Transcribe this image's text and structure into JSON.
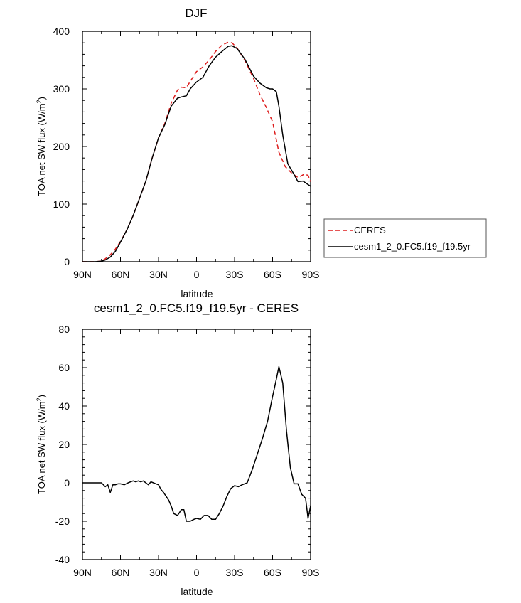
{
  "chart_data": [
    {
      "type": "line",
      "title": "DJF",
      "xlabel": "latitude",
      "ylabel_main": "TOA net SW flux (W/m",
      "ylabel_sup": "2",
      "ylabel_close": ")",
      "xlim": [
        90,
        -90
      ],
      "ylim": [
        0,
        400
      ],
      "xticks": [
        90,
        60,
        30,
        0,
        -30,
        -60,
        -90
      ],
      "xtick_labels": [
        "90N",
        "60N",
        "30N",
        "0",
        "30S",
        "60S",
        "90S"
      ],
      "yticks": [
        0,
        100,
        200,
        300,
        400
      ],
      "ytick_labels": [
        "0",
        "100",
        "200",
        "300",
        "400"
      ],
      "legend_position": "right",
      "series": [
        {
          "name": "CERES",
          "color": "#dd1c1c",
          "dash": "dashed",
          "x": [
            90,
            85,
            80,
            75,
            72,
            68,
            64,
            60,
            55,
            50,
            45,
            40,
            35,
            30,
            25,
            20,
            15,
            12,
            8,
            5,
            0,
            -5,
            -10,
            -15,
            -20,
            -25,
            -28,
            -32,
            -38,
            -45,
            -50,
            -55,
            -60,
            -65,
            -70,
            -75,
            -80,
            -85,
            -88,
            -90
          ],
          "y": [
            0,
            0,
            0,
            1,
            5,
            12,
            22,
            35,
            55,
            80,
            110,
            140,
            180,
            215,
            240,
            275,
            298,
            303,
            302,
            313,
            330,
            338,
            350,
            365,
            376,
            381,
            380,
            371,
            350,
            318,
            290,
            268,
            243,
            190,
            165,
            154,
            146,
            152,
            150,
            139
          ]
        },
        {
          "name": "cesm1_2_0.FC5.f19_f19.5yr",
          "color": "#000000",
          "dash": "solid",
          "x": [
            90,
            85,
            80,
            75,
            72,
            68,
            64,
            60,
            55,
            50,
            45,
            40,
            35,
            30,
            25,
            20,
            15,
            12,
            8,
            5,
            0,
            -5,
            -10,
            -15,
            -20,
            -25,
            -28,
            -32,
            -38,
            -45,
            -50,
            -55,
            -58,
            -60,
            -63,
            -65,
            -68,
            -72,
            -76,
            -80,
            -84,
            -88,
            -90
          ],
          "y": [
            0,
            0,
            0,
            1,
            3,
            8,
            18,
            34,
            55,
            80,
            110,
            140,
            180,
            215,
            238,
            270,
            284,
            286,
            288,
            300,
            312,
            320,
            340,
            355,
            365,
            374,
            375,
            370,
            352,
            322,
            310,
            302,
            300,
            300,
            295,
            270,
            220,
            170,
            155,
            139,
            140,
            134,
            131
          ]
        }
      ]
    },
    {
      "type": "line",
      "title": "cesm1_2_0.FC5.f19_f19.5yr - CERES",
      "xlabel": "latitude",
      "ylabel_main": "TOA net SW flux (W/m",
      "ylabel_sup": "2",
      "ylabel_close": ")",
      "xlim": [
        90,
        -90
      ],
      "ylim": [
        -40,
        80
      ],
      "xticks": [
        90,
        60,
        30,
        0,
        -30,
        -60,
        -90
      ],
      "xtick_labels": [
        "90N",
        "60N",
        "30N",
        "0",
        "30S",
        "60S",
        "90S"
      ],
      "yticks": [
        -40,
        -20,
        0,
        20,
        40,
        60,
        80
      ],
      "ytick_labels": [
        "-40",
        "-20",
        "0",
        "20",
        "40",
        "60",
        "80"
      ],
      "series": [
        {
          "name": "cesm1_2_0.FC5.f19_f19.5yr - CERES",
          "color": "#000000",
          "dash": "solid",
          "x": [
            90,
            85,
            80,
            75,
            72,
            70,
            68,
            66,
            64,
            62,
            60,
            57,
            54,
            52,
            50,
            48,
            46,
            44,
            42,
            40,
            38,
            36,
            34,
            32,
            30,
            28,
            26,
            24,
            22,
            20,
            18,
            15,
            12,
            10,
            8,
            5,
            2,
            0,
            -3,
            -6,
            -9,
            -12,
            -15,
            -18,
            -21,
            -24,
            -27,
            -30,
            -33,
            -36,
            -40,
            -44,
            -48,
            -52,
            -56,
            -60,
            -63,
            -65,
            -68,
            -71,
            -74,
            -77,
            -80,
            -83,
            -86,
            -88,
            -90
          ],
          "y": [
            0,
            0,
            0,
            0,
            -2,
            -1,
            -5,
            -1,
            -1,
            -0.5,
            -0.5,
            -1,
            0,
            0.5,
            1,
            0.5,
            1,
            0.5,
            1,
            0,
            -1,
            0.5,
            0,
            -0.5,
            -1,
            -3.5,
            -5,
            -7,
            -9,
            -12,
            -16,
            -17,
            -14,
            -14,
            -20,
            -20,
            -19,
            -18.5,
            -19,
            -17,
            -17,
            -19,
            -19,
            -16,
            -12,
            -7,
            -3,
            -1.5,
            -2,
            -1,
            0,
            7,
            15,
            23,
            32,
            45,
            54,
            60.5,
            52,
            27,
            8,
            -0.5,
            -0.5,
            -6,
            -8,
            -18.5,
            -12
          ]
        }
      ]
    }
  ]
}
